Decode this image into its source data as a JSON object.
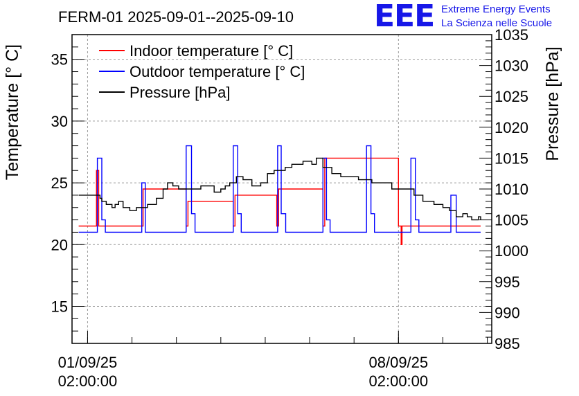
{
  "brand": {
    "logo": "EEE",
    "line1": "Extreme Energy Events",
    "line2": "La Scienza nelle Scuole"
  },
  "colors": {
    "indoor": "#ff0000",
    "outdoor": "#0000ff",
    "pressure": "#000000",
    "brand": "#1717e8"
  },
  "chart_data": {
    "type": "line",
    "title": "FERM-01 2025-09-01--2025-09-10",
    "ylabel": "Temperature [° C]",
    "y2label": "Pressure [hPa]",
    "xlim": [
      -0.35,
      9.1
    ],
    "ylim": [
      12,
      37
    ],
    "y2lim": [
      985,
      1035
    ],
    "x_ticks": [
      {
        "x": 0,
        "line1": "01/09/25",
        "line2": "02:00:00"
      },
      {
        "x": 7,
        "line1": "08/09/25",
        "line2": "02:00:00"
      }
    ],
    "y_ticks": [
      15,
      20,
      25,
      30,
      35
    ],
    "y2_ticks": [
      985,
      990,
      995,
      1000,
      1005,
      1010,
      1015,
      1020,
      1025,
      1030,
      1035
    ],
    "grid": true,
    "legend_position": "top-left",
    "series": [
      {
        "name": "Indoor temperature [° C]",
        "axis": "left",
        "color": "#ff0000",
        "x": [
          -0.2,
          0.18,
          0.2,
          0.25,
          1.2,
          1.25,
          2.22,
          2.26,
          3.28,
          3.32,
          4.26,
          4.3,
          5.3,
          5.34,
          7.0,
          7.06,
          7.08,
          8.85
        ],
        "y": [
          21.5,
          21.5,
          26,
          21.5,
          21.5,
          24.5,
          21.5,
          23.5,
          21.5,
          24.0,
          21.5,
          24.5,
          21.5,
          27,
          21.5,
          20.0,
          21.5,
          21.5
        ]
      },
      {
        "name": "Outdoor temperature [° C]",
        "axis": "left",
        "color": "#0000ff",
        "x": [
          -0.2,
          0.12,
          0.22,
          0.32,
          0.4,
          1.05,
          1.22,
          1.3,
          2.08,
          2.22,
          2.34,
          2.42,
          3.08,
          3.28,
          3.38,
          3.46,
          4.1,
          4.28,
          4.36,
          4.46,
          5.12,
          5.3,
          5.38,
          5.46,
          6.1,
          6.28,
          6.38,
          6.46,
          7.12,
          7.28,
          7.38,
          7.46,
          8.05,
          8.18,
          8.3,
          8.85
        ],
        "y": [
          21.0,
          21.0,
          27.0,
          22.0,
          21.0,
          21.0,
          25.0,
          21.0,
          21.0,
          28.0,
          22.5,
          21.0,
          21.0,
          28.0,
          22.5,
          21.0,
          21.0,
          28.0,
          22.5,
          21.0,
          21.0,
          27.0,
          22.0,
          21.0,
          21.0,
          28.0,
          22.5,
          21.0,
          21.0,
          27.0,
          22.0,
          21.0,
          21.0,
          24.0,
          21.0,
          21.0
        ]
      },
      {
        "name": "Pressure [hPa]",
        "axis": "right",
        "color": "#000000",
        "x": [
          -0.2,
          0.2,
          0.28,
          0.32,
          0.42,
          0.55,
          0.62,
          0.7,
          0.8,
          0.95,
          1.1,
          1.35,
          1.55,
          1.7,
          1.8,
          1.92,
          2.05,
          2.4,
          2.55,
          2.85,
          3.0,
          3.1,
          3.2,
          3.35,
          3.5,
          3.7,
          3.9,
          4.05,
          4.2,
          4.45,
          4.6,
          4.85,
          5.05,
          5.15,
          5.3,
          5.5,
          5.7,
          6.1,
          6.4,
          6.6,
          6.85,
          7.1,
          7.35,
          7.55,
          7.8,
          8.0,
          8.15,
          8.3,
          8.45,
          8.55,
          8.65,
          8.8,
          8.85
        ],
        "y": [
          1009.0,
          1009.0,
          1008.5,
          1008.0,
          1007.5,
          1007.0,
          1007.5,
          1008.0,
          1007.0,
          1006.5,
          1007.0,
          1007.5,
          1008.5,
          1010.0,
          1011.0,
          1010.5,
          1010.0,
          1010.0,
          1010.5,
          1009.5,
          1010.0,
          1010.5,
          1011.0,
          1012.0,
          1011.5,
          1010.5,
          1011.0,
          1012.5,
          1013.0,
          1013.5,
          1014.0,
          1014.5,
          1014.0,
          1015.0,
          1013.5,
          1012.5,
          1012.0,
          1011.5,
          1011.0,
          1011.0,
          1010.0,
          1010.0,
          1009.0,
          1008.0,
          1007.5,
          1007.0,
          1006.5,
          1005.5,
          1006.0,
          1005.5,
          1005.0,
          1005.5,
          1005.0
        ]
      }
    ]
  }
}
